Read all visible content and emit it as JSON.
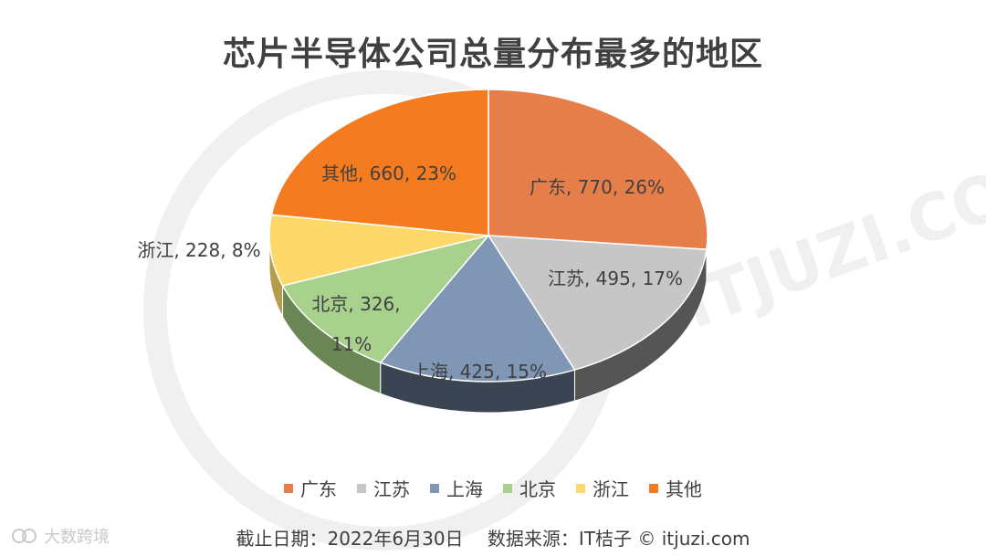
{
  "title": "芯片半导体公司总量分布最多的地区",
  "chart_data": {
    "type": "pie",
    "title": "芯片半导体公司总量分布最多的地区",
    "slices": [
      {
        "name": "广东",
        "value": 770,
        "percent": "26%",
        "color": "#e67e4a",
        "side": "#b9603a"
      },
      {
        "name": "江苏",
        "value": 495,
        "percent": "17%",
        "color": "#c6c6c6",
        "side": "#555555"
      },
      {
        "name": "上海",
        "value": 425,
        "percent": "15%",
        "color": "#7f96b4",
        "side": "#3a4453"
      },
      {
        "name": "北京",
        "value": 326,
        "percent": "11%",
        "color": "#a9d18e",
        "side": "#6a8654"
      },
      {
        "name": "浙江",
        "value": 228,
        "percent": "8%",
        "color": "#fcd96a",
        "side": "#b79c4c"
      },
      {
        "name": "其他",
        "value": 660,
        "percent": "23%",
        "color": "#f47b20",
        "side": "#b05718"
      }
    ],
    "legend_position": "bottom"
  },
  "legend": [
    "广东",
    "江苏",
    "上海",
    "北京",
    "浙江",
    "其他"
  ],
  "footer": {
    "date": "截止日期：2022年6月30日",
    "source": "数据来源：IT桔子 © itjuzi.com"
  },
  "brand": "大数跨境",
  "watermark": "ITJUZI.COM"
}
